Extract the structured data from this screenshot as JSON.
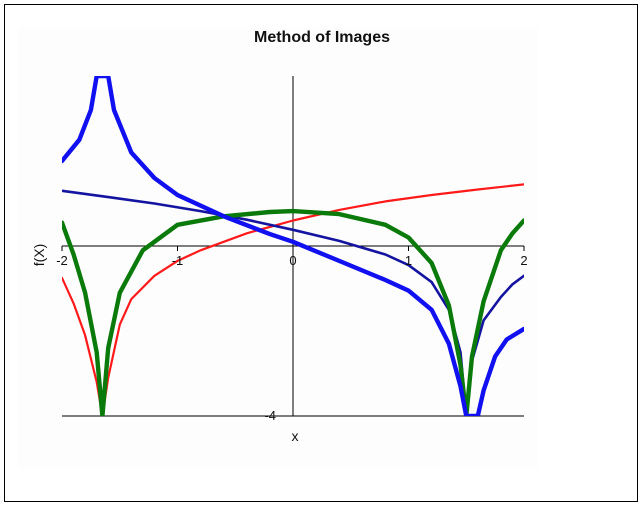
{
  "chart_data": {
    "type": "line",
    "title": "Method of Images",
    "xlabel": "x",
    "ylabel": "f(X)",
    "xlim": [
      -2,
      2
    ],
    "ylim": [
      -4,
      4
    ],
    "x_ticks": [
      "-2",
      "-1",
      "0",
      "1",
      "2"
    ],
    "y_ticks": [
      "-4"
    ],
    "grid": false,
    "legend": "none",
    "series": [
      {
        "color": "#ff1a1a",
        "width": "thin",
        "points": [
          [
            -2,
            -0.75
          ],
          [
            -1.9,
            -1.35
          ],
          [
            -1.8,
            -2.1
          ],
          [
            -1.7,
            -3.2
          ],
          [
            -1.65,
            -4
          ],
          [
            -1.6,
            -3.1
          ],
          [
            -1.5,
            -1.85
          ],
          [
            -1.4,
            -1.25
          ],
          [
            -1.2,
            -0.7
          ],
          [
            -1,
            -0.35
          ],
          [
            -0.8,
            -0.1
          ],
          [
            -0.6,
            0.1
          ],
          [
            -0.4,
            0.3
          ],
          [
            -0.2,
            0.45
          ],
          [
            0,
            0.6
          ],
          [
            0.4,
            0.85
          ],
          [
            0.8,
            1.05
          ],
          [
            1.2,
            1.2
          ],
          [
            1.6,
            1.33
          ],
          [
            2,
            1.45
          ]
        ]
      },
      {
        "color": "#1414a0",
        "width": "medium",
        "points": [
          [
            -2,
            1.3
          ],
          [
            -1.6,
            1.15
          ],
          [
            -1.2,
            1.0
          ],
          [
            -0.8,
            0.82
          ],
          [
            -0.4,
            0.62
          ],
          [
            0,
            0.38
          ],
          [
            0.4,
            0.12
          ],
          [
            0.8,
            -0.2
          ],
          [
            1.0,
            -0.45
          ],
          [
            1.2,
            -0.85
          ],
          [
            1.35,
            -1.5
          ],
          [
            1.45,
            -2.5
          ],
          [
            1.5,
            -4
          ],
          [
            1.55,
            -2.7
          ],
          [
            1.65,
            -1.75
          ],
          [
            1.8,
            -1.2
          ],
          [
            1.9,
            -0.9
          ],
          [
            2,
            -0.7
          ]
        ]
      },
      {
        "color": "#0a7a0a",
        "width": "thick",
        "points": [
          [
            -2,
            0.55
          ],
          [
            -1.9,
            -0.2
          ],
          [
            -1.8,
            -1.1
          ],
          [
            -1.7,
            -2.5
          ],
          [
            -1.65,
            -4
          ],
          [
            -1.6,
            -2.4
          ],
          [
            -1.5,
            -1.1
          ],
          [
            -1.3,
            -0.1
          ],
          [
            -1.0,
            0.5
          ],
          [
            -0.6,
            0.7
          ],
          [
            -0.2,
            0.8
          ],
          [
            0,
            0.82
          ],
          [
            0.4,
            0.75
          ],
          [
            0.8,
            0.5
          ],
          [
            1.0,
            0.2
          ],
          [
            1.2,
            -0.4
          ],
          [
            1.35,
            -1.4
          ],
          [
            1.45,
            -2.8
          ],
          [
            1.5,
            -4
          ],
          [
            1.55,
            -2.6
          ],
          [
            1.65,
            -1.3
          ],
          [
            1.8,
            -0.1
          ],
          [
            1.9,
            0.3
          ],
          [
            2,
            0.6
          ]
        ]
      },
      {
        "color": "#1010f0",
        "width": "thick",
        "points": [
          [
            -2,
            2.0
          ],
          [
            -1.85,
            2.5
          ],
          [
            -1.75,
            3.2
          ],
          [
            -1.7,
            4
          ],
          [
            -1.6,
            4
          ],
          [
            -1.55,
            3.2
          ],
          [
            -1.4,
            2.2
          ],
          [
            -1.2,
            1.6
          ],
          [
            -1.0,
            1.2
          ],
          [
            -0.6,
            0.7
          ],
          [
            -0.2,
            0.28
          ],
          [
            0,
            0.1
          ],
          [
            0.4,
            -0.35
          ],
          [
            0.8,
            -0.8
          ],
          [
            1.0,
            -1.05
          ],
          [
            1.2,
            -1.5
          ],
          [
            1.35,
            -2.3
          ],
          [
            1.45,
            -3.3
          ],
          [
            1.5,
            -4
          ],
          [
            1.6,
            -4
          ],
          [
            1.65,
            -3.4
          ],
          [
            1.75,
            -2.6
          ],
          [
            1.85,
            -2.2
          ],
          [
            2,
            -1.95
          ]
        ]
      }
    ]
  }
}
